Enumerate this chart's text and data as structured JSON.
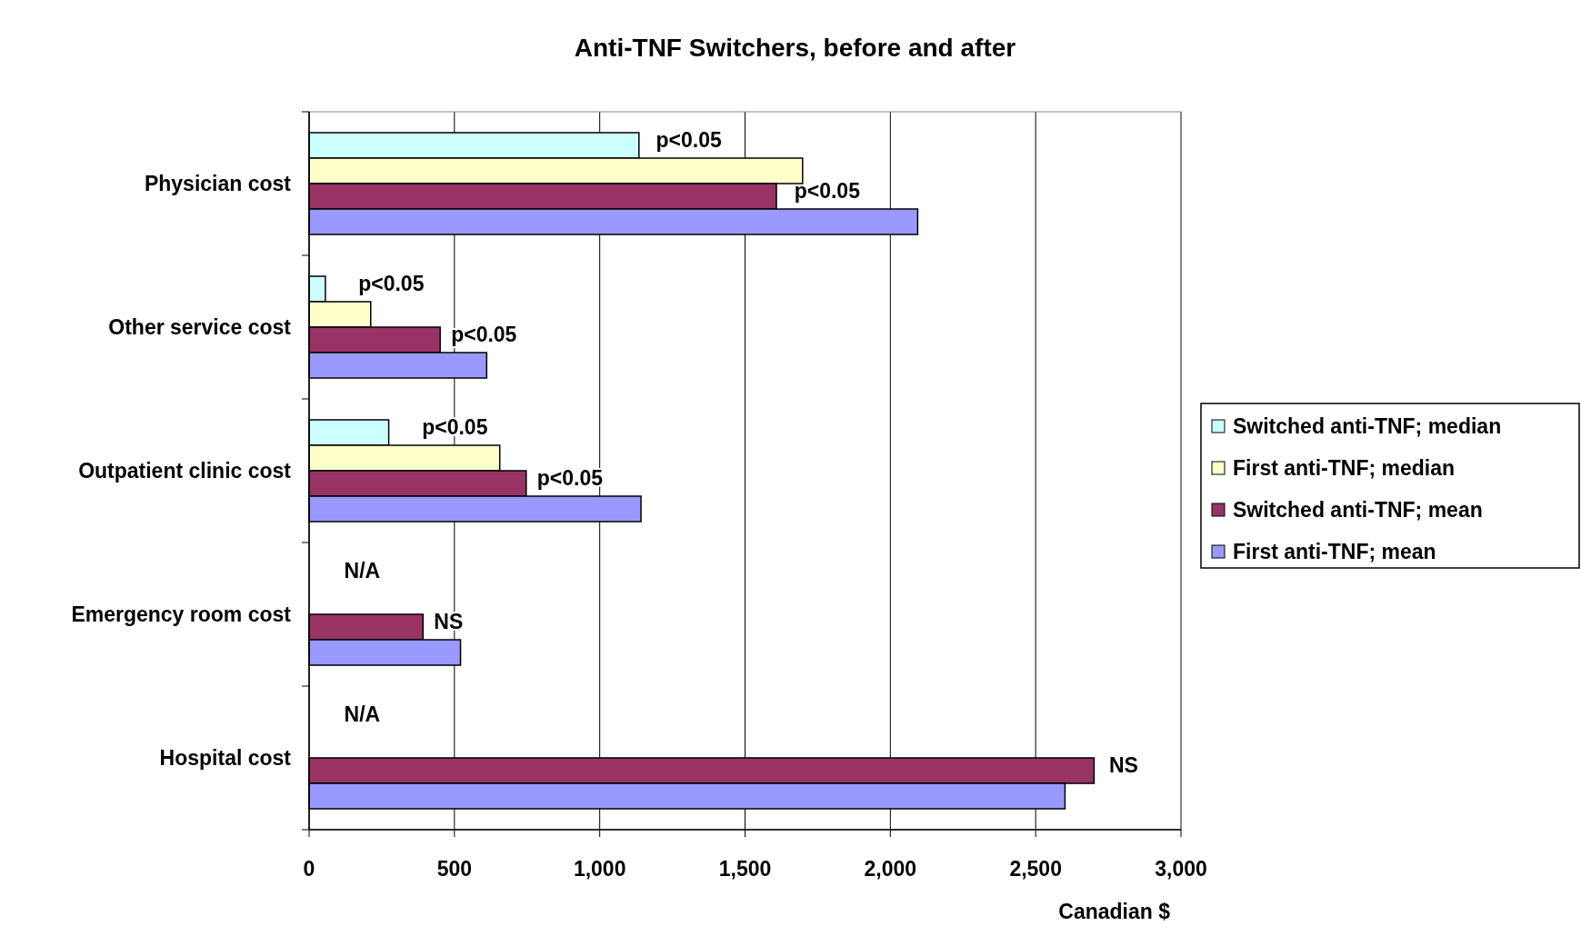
{
  "chart_data": {
    "type": "bar",
    "orientation": "horizontal",
    "title": "Anti-TNF Switchers, before and after",
    "xlabel": "Canadian $",
    "categories": [
      "Physician cost",
      "Other service cost",
      "Outpatient clinic cost",
      "Emergency room cost",
      "Hospital  cost"
    ],
    "series": [
      {
        "name": "Switched anti-TNF; median",
        "color": "#ccffff",
        "values": [
          1135,
          56,
          274,
          null,
          null
        ]
      },
      {
        "name": "First anti-TNF; median",
        "color": "#ffffcc",
        "values": [
          1698,
          212,
          656,
          null,
          null
        ]
      },
      {
        "name": "Switched anti-TNF; mean",
        "color": "#993366",
        "values": [
          1608,
          451,
          747,
          392,
          2701
        ]
      },
      {
        "name": "First anti-TNF; mean",
        "color": "#9999ff",
        "values": [
          2094,
          611,
          1142,
          521,
          2601
        ]
      }
    ],
    "xlim": [
      0,
      3000
    ],
    "xticks": [
      0,
      {
        "value": 500,
        "label": "500"
      },
      {
        "value": 1000,
        "label": "1,000"
      },
      {
        "value": 1500,
        "label": "1,500"
      },
      {
        "value": 2000,
        "label": "2,000"
      },
      {
        "value": 2500,
        "label": "2,500"
      },
      {
        "value": 3000,
        "label": "3,000"
      }
    ],
    "grid": "x",
    "legend": "right",
    "annotations": [
      {
        "text": "p<0.05",
        "x": 1156,
        "y": "Physician cost"
      },
      {
        "text": "p<0.05",
        "x": 1632,
        "y": "Physician cost"
      },
      {
        "text": "p<0.05",
        "x": 132,
        "y": "Other service cost"
      },
      {
        "text": "p<0.05",
        "x": 451,
        "y": "Other service cost"
      },
      {
        "text": "p<0.05",
        "x": 351,
        "y": "Outpatient clinic cost"
      },
      {
        "text": "p<0.05",
        "x": 747,
        "y": "Outpatient clinic cost"
      },
      {
        "text": "N/A",
        "x": 83,
        "y": "Emergency room cost"
      },
      {
        "text": "NS",
        "x": 392,
        "y": "Emergency room cost"
      },
      {
        "text": "N/A",
        "x": 83,
        "y": "Hospital  cost"
      },
      {
        "text": "NS",
        "x": 2715,
        "y": "Hospital  cost"
      }
    ]
  }
}
